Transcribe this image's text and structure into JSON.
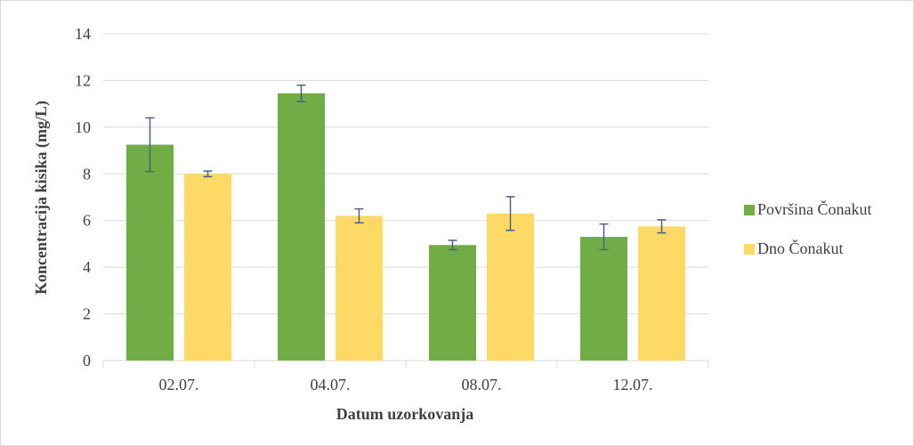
{
  "chart_data": {
    "type": "bar",
    "categories": [
      "02.07.",
      "04.07.",
      "08.07.",
      "12.07."
    ],
    "series": [
      {
        "name": "Površina Čonakut",
        "color": "#70ad47",
        "values": [
          9.25,
          11.45,
          4.95,
          5.3
        ],
        "error": [
          1.15,
          0.35,
          0.2,
          0.55
        ]
      },
      {
        "name": "Dno Čonakut",
        "color": "#ffd966",
        "values": [
          8.0,
          6.2,
          6.3,
          5.75
        ],
        "error": [
          0.12,
          0.3,
          0.72,
          0.28
        ]
      }
    ],
    "xlabel": "Datum uzorkovanja",
    "ylabel": "Koncentracija kisika (mg/L)",
    "ylim": [
      0,
      14
    ],
    "yticks": [
      0,
      2,
      4,
      6,
      8,
      10,
      12,
      14
    ],
    "grid": true,
    "legend_position": "right",
    "colors": {
      "gridline": "#d9d9d9",
      "errorbar": "#4a6383",
      "text": "#404040"
    }
  }
}
